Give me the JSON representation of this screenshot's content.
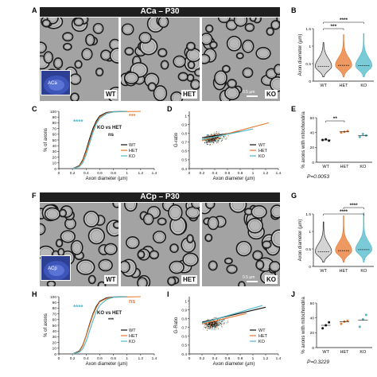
{
  "panels": {
    "A": "A",
    "B": "B",
    "C": "C",
    "D": "D",
    "E": "E",
    "F": "F",
    "G": "G",
    "H": "H",
    "I": "I",
    "J": "J"
  },
  "top": {
    "title": "ACa – P30",
    "em_labels": [
      "WT",
      "HET",
      "KO"
    ],
    "scale_bar": "0.5 µm",
    "inset_label": "ACa"
  },
  "bottom": {
    "title": "ACp – P30",
    "em_labels": [
      "WT",
      "HET",
      "KO"
    ],
    "scale_bar": "0.5 µm",
    "inset_label": "ACp"
  },
  "colors": {
    "WT": "#111111",
    "HET": "#e8772e",
    "KO": "#4fb8c9",
    "title_bar": "#1f1f1f"
  },
  "chart_data": [
    {
      "id": "B",
      "type": "violin",
      "categories": [
        "WT",
        "HET",
        "KO"
      ],
      "ylabel": "Axon diameter (µm)",
      "ylim": [
        0,
        1.5
      ],
      "yticks": [
        0.0,
        0.5,
        1.0,
        1.5
      ],
      "medians": [
        0.42,
        0.45,
        0.44
      ],
      "spread": [
        0.68,
        0.88,
        0.92
      ],
      "significance": [
        {
          "from": 0,
          "to": 1,
          "label": "***"
        },
        {
          "from": 0,
          "to": 2,
          "label": "****"
        }
      ]
    },
    {
      "id": "C",
      "type": "line",
      "title": "",
      "xlabel": "Axon diameter (µm)",
      "ylabel": "% of axons",
      "xlim": [
        0,
        1.4
      ],
      "ylim": [
        0,
        100
      ],
      "xticks": [
        0,
        0.2,
        0.4,
        0.6,
        0.8,
        1.0,
        1.2,
        1.4
      ],
      "yticks": [
        0,
        10,
        20,
        30,
        40,
        50,
        60,
        70,
        80,
        90,
        100
      ],
      "series": [
        {
          "name": "WT",
          "x": [
            0.2,
            0.3,
            0.35,
            0.4,
            0.45,
            0.5,
            0.55,
            0.6,
            0.7,
            0.8,
            1.0
          ],
          "y": [
            0,
            5,
            15,
            32,
            52,
            70,
            83,
            92,
            98,
            99.5,
            100
          ]
        },
        {
          "name": "HET",
          "x": [
            0.2,
            0.3,
            0.35,
            0.4,
            0.45,
            0.5,
            0.55,
            0.6,
            0.7,
            0.8,
            1.2
          ],
          "y": [
            0,
            4,
            13,
            29,
            48,
            66,
            80,
            90,
            97,
            99,
            100
          ]
        },
        {
          "name": "KO",
          "x": [
            0.2,
            0.3,
            0.35,
            0.4,
            0.45,
            0.5,
            0.55,
            0.6,
            0.7,
            0.8,
            1.0
          ],
          "y": [
            0,
            3,
            10,
            24,
            44,
            63,
            78,
            88,
            96,
            99,
            100
          ]
        }
      ],
      "annotations": [
        {
          "text": "****",
          "color": "#4fb8c9"
        },
        {
          "text": "***",
          "color": "#e8772e"
        },
        {
          "text": "KO vs HET"
        },
        {
          "text": "ns"
        }
      ]
    },
    {
      "id": "D",
      "type": "scatter",
      "xlabel": "Axon diameter (µm)",
      "ylabel": "G-ratio",
      "xlim": [
        0,
        1.4
      ],
      "ylim": [
        0.4,
        1.05
      ],
      "xticks": [
        0,
        0.2,
        0.4,
        0.6,
        0.8,
        1.0,
        1.2,
        1.4
      ],
      "yticks": [
        0.4,
        0.5,
        0.6,
        0.7,
        0.8,
        0.9,
        1.0
      ],
      "fits": [
        {
          "name": "WT",
          "x": [
            0.2,
            0.8
          ],
          "y": [
            0.75,
            0.82
          ]
        },
        {
          "name": "HET",
          "x": [
            0.2,
            1.25
          ],
          "y": [
            0.72,
            0.92
          ]
        },
        {
          "name": "KO",
          "x": [
            0.2,
            1.0
          ],
          "y": [
            0.73,
            0.85
          ]
        }
      ]
    },
    {
      "id": "E",
      "type": "scatter",
      "categories": [
        "WT",
        "HET",
        "KO"
      ],
      "ylabel": "% axons with mitochondria",
      "ylim": [
        0,
        60
      ],
      "yticks": [
        0,
        20,
        40,
        60
      ],
      "points": [
        [
          30,
          31,
          29
        ],
        [
          40,
          41,
          42
        ],
        [
          34,
          38,
          36
        ]
      ],
      "means": [
        30,
        41,
        36
      ],
      "significance": [
        {
          "from": 0,
          "to": 1,
          "label": "**"
        }
      ],
      "pvalue": "P=0.0053"
    },
    {
      "id": "G",
      "type": "violin",
      "categories": [
        "WT",
        "HET",
        "KO"
      ],
      "ylabel": "Axon diameter (µm)",
      "ylim": [
        0,
        1.5
      ],
      "yticks": [
        0.0,
        0.5,
        1.0,
        1.5
      ],
      "medians": [
        0.42,
        0.45,
        0.48
      ],
      "spread": [
        0.85,
        1.0,
        1.05
      ],
      "significance": [
        {
          "from": 0,
          "to": 2,
          "label": "****"
        },
        {
          "from": 1,
          "to": 2,
          "label": "****"
        }
      ]
    },
    {
      "id": "H",
      "type": "line",
      "xlabel": "Axon diameter (µm)",
      "ylabel": "% of axons",
      "xlim": [
        0,
        1.4
      ],
      "ylim": [
        0,
        100
      ],
      "xticks": [
        0,
        0.2,
        0.4,
        0.6,
        0.8,
        1.0,
        1.2,
        1.4
      ],
      "yticks": [
        0,
        10,
        20,
        30,
        40,
        50,
        60,
        70,
        80,
        90,
        100
      ],
      "series": [
        {
          "name": "WT",
          "x": [
            0.2,
            0.3,
            0.35,
            0.4,
            0.45,
            0.5,
            0.55,
            0.6,
            0.7,
            0.8,
            1.0
          ],
          "y": [
            0,
            5,
            15,
            32,
            52,
            70,
            83,
            92,
            98,
            99.5,
            100
          ]
        },
        {
          "name": "HET",
          "x": [
            0.2,
            0.3,
            0.35,
            0.4,
            0.45,
            0.5,
            0.55,
            0.6,
            0.7,
            0.8,
            1.2
          ],
          "y": [
            0,
            4,
            14,
            31,
            50,
            68,
            81,
            91,
            97,
            99,
            100
          ]
        },
        {
          "name": "KO",
          "x": [
            0.2,
            0.3,
            0.35,
            0.4,
            0.45,
            0.5,
            0.55,
            0.6,
            0.7,
            0.8,
            1.0
          ],
          "y": [
            0,
            3,
            9,
            22,
            40,
            58,
            74,
            85,
            95,
            99,
            100
          ]
        }
      ],
      "annotations": [
        {
          "text": "****",
          "color": "#4fb8c9"
        },
        {
          "text": "ns",
          "color": "#e8772e"
        },
        {
          "text": "KO vs HET"
        },
        {
          "text": "***"
        }
      ]
    },
    {
      "id": "I",
      "type": "scatter",
      "xlabel": "Axon diameter (µm)",
      "ylabel": "G-Ratio",
      "xlim": [
        0,
        1.4
      ],
      "ylim": [
        0.4,
        1.05
      ],
      "xticks": [
        0,
        0.2,
        0.4,
        0.6,
        0.8,
        1.0,
        1.2,
        1.4
      ],
      "yticks": [
        0.4,
        0.5,
        0.6,
        0.7,
        0.8,
        0.9,
        1.0
      ],
      "fits": [
        {
          "name": "WT",
          "x": [
            0.2,
            1.2
          ],
          "y": [
            0.76,
            0.93
          ]
        },
        {
          "name": "HET",
          "x": [
            0.2,
            0.9
          ],
          "y": [
            0.74,
            0.86
          ]
        },
        {
          "name": "KO",
          "x": [
            0.2,
            1.15
          ],
          "y": [
            0.75,
            0.95
          ]
        }
      ]
    },
    {
      "id": "J",
      "type": "scatter",
      "categories": [
        "WT",
        "HET",
        "KO"
      ],
      "ylabel": "% axons with mitochondria",
      "ylim": [
        0,
        60
      ],
      "yticks": [
        0,
        20,
        40,
        60
      ],
      "points": [
        [
          26,
          30,
          34
        ],
        [
          32,
          35,
          36
        ],
        [
          28,
          38,
          44
        ]
      ],
      "means": [
        30,
        35,
        37
      ],
      "pvalue": "P=0.3229"
    }
  ]
}
